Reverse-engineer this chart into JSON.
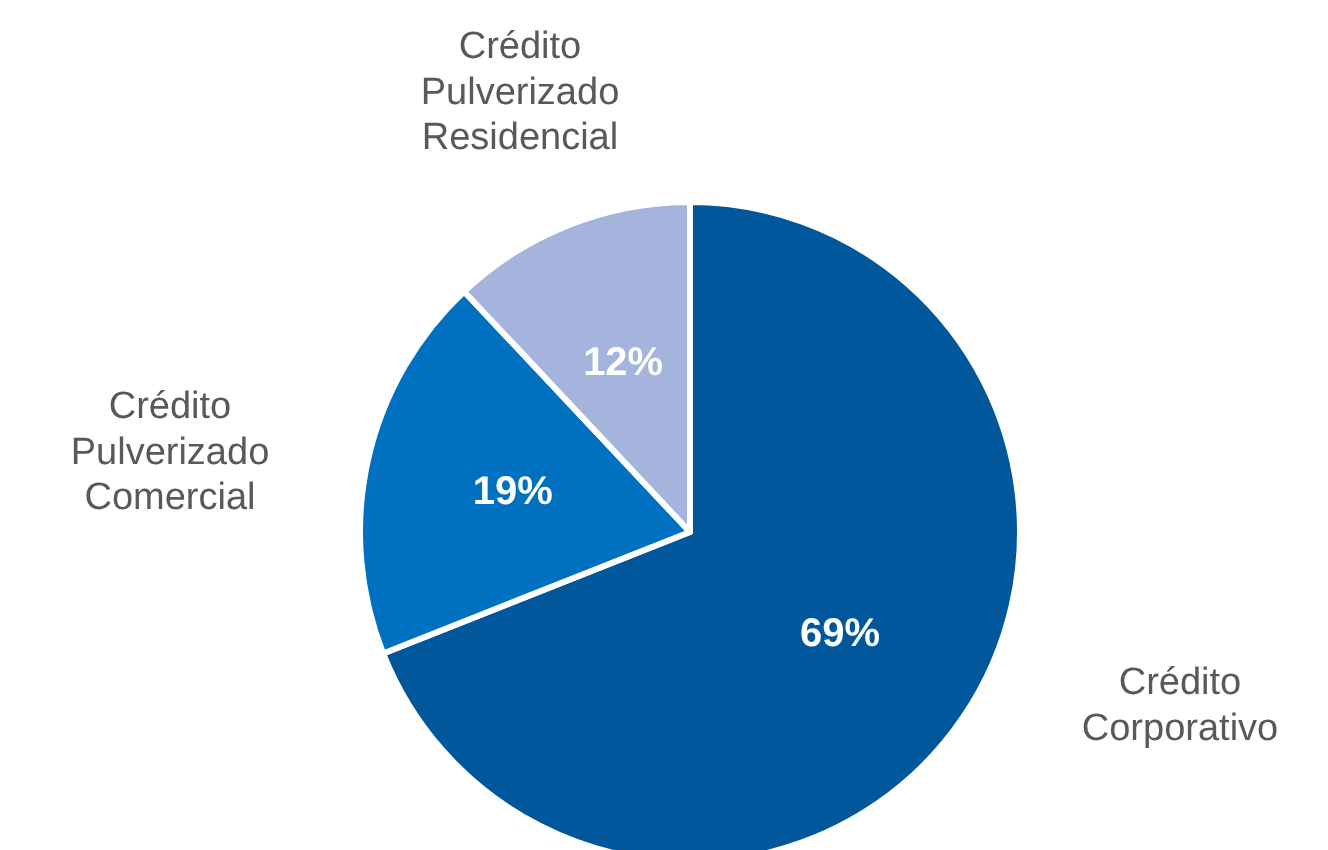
{
  "chart_data": {
    "type": "pie",
    "categories": [
      "Crédito Corporativo",
      "Crédito Pulverizado Comercial",
      "Crédito Pulverizado Residencial"
    ],
    "values": [
      69,
      19,
      12
    ],
    "colors": [
      "#00579c",
      "#0070c0",
      "#a5b4dc"
    ],
    "value_labels": [
      "69%",
      "19%",
      "12%"
    ]
  }
}
